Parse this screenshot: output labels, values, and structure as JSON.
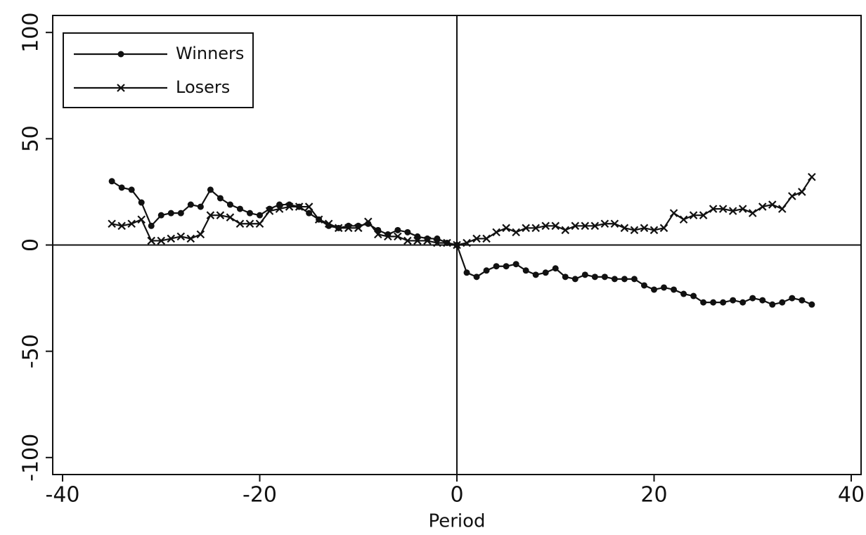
{
  "chart_data": {
    "type": "line",
    "x_label": "Period",
    "x": [
      -35,
      -34,
      -33,
      -32,
      -31,
      -30,
      -29,
      -28,
      -27,
      -26,
      -25,
      -24,
      -23,
      -22,
      -21,
      -20,
      -19,
      -18,
      -17,
      -16,
      -15,
      -14,
      -13,
      -12,
      -11,
      -10,
      -9,
      -8,
      -7,
      -6,
      -5,
      -4,
      -3,
      -2,
      -1,
      0,
      1,
      2,
      3,
      4,
      5,
      6,
      7,
      8,
      9,
      10,
      11,
      12,
      13,
      14,
      15,
      16,
      17,
      18,
      19,
      20,
      21,
      22,
      23,
      24,
      25,
      26,
      27,
      28,
      29,
      30,
      31,
      32,
      33,
      34,
      35,
      36
    ],
    "series": [
      {
        "name": "Winners",
        "color": "#111111",
        "marker": "circle",
        "values": [
          30,
          27,
          26,
          20,
          9,
          14,
          15,
          15,
          19,
          18,
          26,
          22,
          19,
          17,
          15,
          14,
          17,
          19,
          19,
          18,
          15,
          12,
          9,
          8,
          9,
          9,
          10,
          7,
          5,
          7,
          6,
          4,
          3,
          3,
          1,
          0,
          -13,
          -15,
          -12,
          -10,
          -10,
          -9,
          -12,
          -14,
          -13,
          -11,
          -15,
          -16,
          -14,
          -15,
          -15,
          -16,
          -16,
          -16,
          -19,
          -21,
          -20,
          -21,
          -23,
          -24,
          -27,
          -27,
          -27,
          -26,
          -27,
          -25,
          -26,
          -28,
          -27,
          -25,
          -26,
          -28
        ]
      },
      {
        "name": "Losers",
        "color": "#111111",
        "marker": "x",
        "values": [
          10,
          9,
          10,
          12,
          2,
          2,
          3,
          4,
          3,
          5,
          14,
          14,
          13,
          10,
          10,
          10,
          16,
          17,
          18,
          18,
          18,
          12,
          10,
          8,
          8,
          8,
          11,
          5,
          4,
          4,
          2,
          2,
          2,
          1,
          1,
          0,
          1,
          3,
          3,
          6,
          8,
          6,
          8,
          8,
          9,
          9,
          7,
          9,
          9,
          9,
          10,
          10,
          8,
          7,
          8,
          7,
          8,
          15,
          12,
          14,
          14,
          17,
          17,
          16,
          17,
          15,
          18,
          19,
          17,
          23,
          25,
          32
        ]
      }
    ],
    "xlim": [
      -41,
      41
    ],
    "ylim": [
      -108,
      108
    ],
    "xticks": [
      -40,
      -20,
      0,
      20,
      40
    ],
    "yticks": [
      -100,
      -50,
      0,
      50,
      100
    ],
    "legend": "upper left"
  }
}
